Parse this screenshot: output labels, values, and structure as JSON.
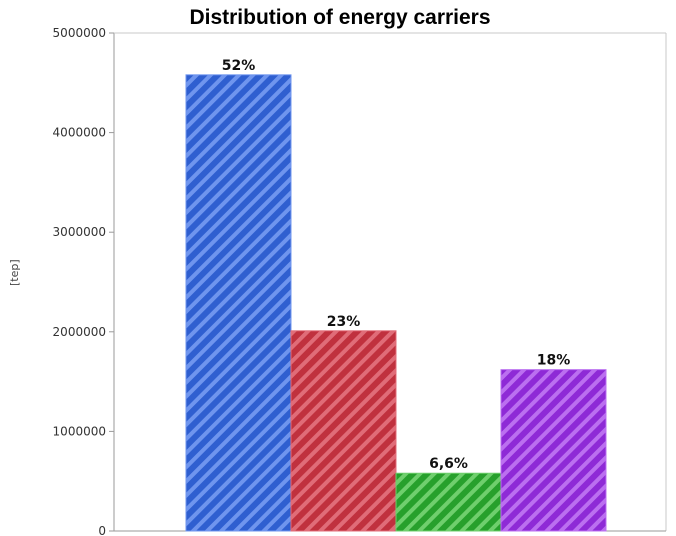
{
  "chart_data": {
    "type": "bar",
    "title": "Distribution of energy carriers",
    "ylabel": "[tep]",
    "ylim": [
      0,
      5000000
    ],
    "yticks": [
      "0",
      "1000000",
      "2000000",
      "3000000",
      "4000000",
      "5000000"
    ],
    "bars": [
      {
        "value": 4580000,
        "label": "52%",
        "color": "#2f5fd0",
        "stripe": "#6f95ee"
      },
      {
        "value": 2010000,
        "label": "23%",
        "color": "#c0313e",
        "stripe": "#e06c78"
      },
      {
        "value": 580000,
        "label": "6,6%",
        "color": "#27a02c",
        "stripe": "#6fcf6d"
      },
      {
        "value": 1620000,
        "label": "18%",
        "color": "#8e2ad6",
        "stripe": "#bb6ff0"
      }
    ],
    "grid": false,
    "legend": "none"
  }
}
